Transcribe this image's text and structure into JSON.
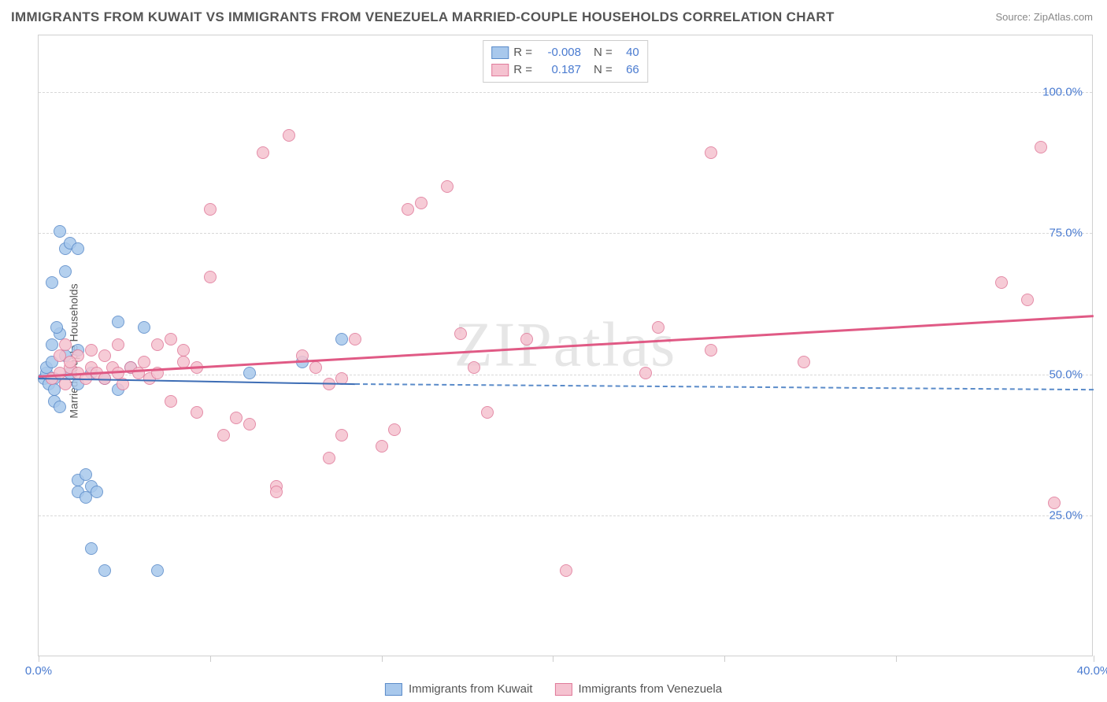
{
  "title": "IMMIGRANTS FROM KUWAIT VS IMMIGRANTS FROM VENEZUELA MARRIED-COUPLE HOUSEHOLDS CORRELATION CHART",
  "source": "Source: ZipAtlas.com",
  "ylabel": "Married-couple Households",
  "watermark": "ZIPatlas",
  "chart": {
    "type": "scatter",
    "background_color": "#ffffff",
    "border_color": "#d0d0d0",
    "grid_color": "#d8d8d8",
    "xlim": [
      0,
      40
    ],
    "ylim": [
      0,
      110
    ],
    "xtick_positions": [
      0,
      6.5,
      13,
      19.5,
      26,
      32.5,
      40
    ],
    "xtick_labels": {
      "0": "0.0%",
      "40": "40.0%"
    },
    "ytick_positions": [
      25,
      50,
      75,
      100
    ],
    "ytick_labels": [
      "25.0%",
      "50.0%",
      "75.0%",
      "100.0%"
    ],
    "tick_label_color": "#4a7bd0",
    "tick_label_fontsize": 15,
    "marker_radius": 8,
    "marker_border_width": 1.2,
    "marker_fill_opacity": 0.35,
    "series": [
      {
        "name": "Immigrants from Kuwait",
        "color_fill": "#a8c8ec",
        "color_stroke": "#5a8bc9",
        "r": "-0.008",
        "n": "40",
        "trend": {
          "x1": 0,
          "y1": 49.5,
          "x2": 12,
          "y2": 48.5,
          "color": "#3d6db5",
          "width": 2
        },
        "trend_extrapolate": {
          "x1": 12,
          "y1": 48.5,
          "x2": 40,
          "y2": 47.5,
          "color": "#5a8bc9",
          "width": 2
        },
        "points": [
          [
            0.2,
            49
          ],
          [
            0.3,
            50
          ],
          [
            0.3,
            51
          ],
          [
            0.4,
            48
          ],
          [
            0.5,
            52
          ],
          [
            0.5,
            55
          ],
          [
            0.6,
            49
          ],
          [
            0.6,
            47
          ],
          [
            0.8,
            57
          ],
          [
            0.8,
            75
          ],
          [
            1.0,
            72
          ],
          [
            1.2,
            73
          ],
          [
            1.0,
            68
          ],
          [
            0.5,
            66
          ],
          [
            1.5,
            72
          ],
          [
            0.6,
            45
          ],
          [
            0.8,
            44
          ],
          [
            1.5,
            29
          ],
          [
            1.5,
            31
          ],
          [
            1.8,
            28
          ],
          [
            2.0,
            30
          ],
          [
            1.8,
            32
          ],
          [
            2.2,
            29
          ],
          [
            2.0,
            19
          ],
          [
            2.5,
            15
          ],
          [
            4.5,
            15
          ],
          [
            3.0,
            59
          ],
          [
            3.5,
            51
          ],
          [
            8.0,
            50
          ],
          [
            10.0,
            52
          ],
          [
            11.5,
            56
          ],
          [
            1.0,
            53
          ],
          [
            1.2,
            50
          ],
          [
            1.5,
            48
          ],
          [
            2.0,
            50
          ],
          [
            2.5,
            49
          ],
          [
            3.0,
            47
          ],
          [
            4.0,
            58
          ],
          [
            1.5,
            54
          ],
          [
            0.7,
            58
          ]
        ]
      },
      {
        "name": "Immigrants from Venezuela",
        "color_fill": "#f5c2d0",
        "color_stroke": "#e07a9a",
        "r": "0.187",
        "n": "66",
        "trend": {
          "x1": 0,
          "y1": 49.8,
          "x2": 40,
          "y2": 60.5,
          "color": "#e05a85",
          "width": 2.5
        },
        "points": [
          [
            0.5,
            49
          ],
          [
            0.8,
            50
          ],
          [
            1.0,
            48
          ],
          [
            1.2,
            51
          ],
          [
            1.5,
            50
          ],
          [
            1.8,
            49
          ],
          [
            2.0,
            51
          ],
          [
            2.2,
            50
          ],
          [
            2.5,
            49
          ],
          [
            2.8,
            51
          ],
          [
            3.0,
            50
          ],
          [
            3.2,
            48
          ],
          [
            3.5,
            51
          ],
          [
            3.8,
            50
          ],
          [
            4.0,
            52
          ],
          [
            4.2,
            49
          ],
          [
            4.5,
            50
          ],
          [
            5.0,
            56
          ],
          [
            5.5,
            54
          ],
          [
            6.0,
            51
          ],
          [
            6.5,
            67
          ],
          [
            5.5,
            52
          ],
          [
            7.0,
            39
          ],
          [
            7.5,
            42
          ],
          [
            8.0,
            41
          ],
          [
            9.0,
            30
          ],
          [
            9.0,
            29
          ],
          [
            4.5,
            55
          ],
          [
            5.0,
            45
          ],
          [
            6.0,
            43
          ],
          [
            8.5,
            89
          ],
          [
            9.5,
            92
          ],
          [
            6.5,
            79
          ],
          [
            10.0,
            53
          ],
          [
            10.5,
            51
          ],
          [
            11.0,
            48
          ],
          [
            11.5,
            49
          ],
          [
            12.0,
            56
          ],
          [
            11.0,
            35
          ],
          [
            11.5,
            39
          ],
          [
            13.0,
            37
          ],
          [
            13.5,
            40
          ],
          [
            14.0,
            79
          ],
          [
            14.5,
            80
          ],
          [
            15.5,
            83
          ],
          [
            16.0,
            57
          ],
          [
            16.5,
            51
          ],
          [
            17.0,
            43
          ],
          [
            18.5,
            56
          ],
          [
            20.0,
            15
          ],
          [
            23.0,
            50
          ],
          [
            23.5,
            58
          ],
          [
            25.5,
            54
          ],
          [
            25.5,
            89
          ],
          [
            29.0,
            52
          ],
          [
            36.5,
            66
          ],
          [
            37.5,
            63
          ],
          [
            38.0,
            90
          ],
          [
            38.5,
            27
          ],
          [
            1.0,
            55
          ],
          [
            1.5,
            53
          ],
          [
            2.0,
            54
          ],
          [
            3.0,
            55
          ],
          [
            0.8,
            53
          ],
          [
            1.2,
            52
          ],
          [
            2.5,
            53
          ]
        ]
      }
    ]
  },
  "legend_bottom": [
    "Immigrants from Kuwait",
    "Immigrants from Venezuela"
  ]
}
